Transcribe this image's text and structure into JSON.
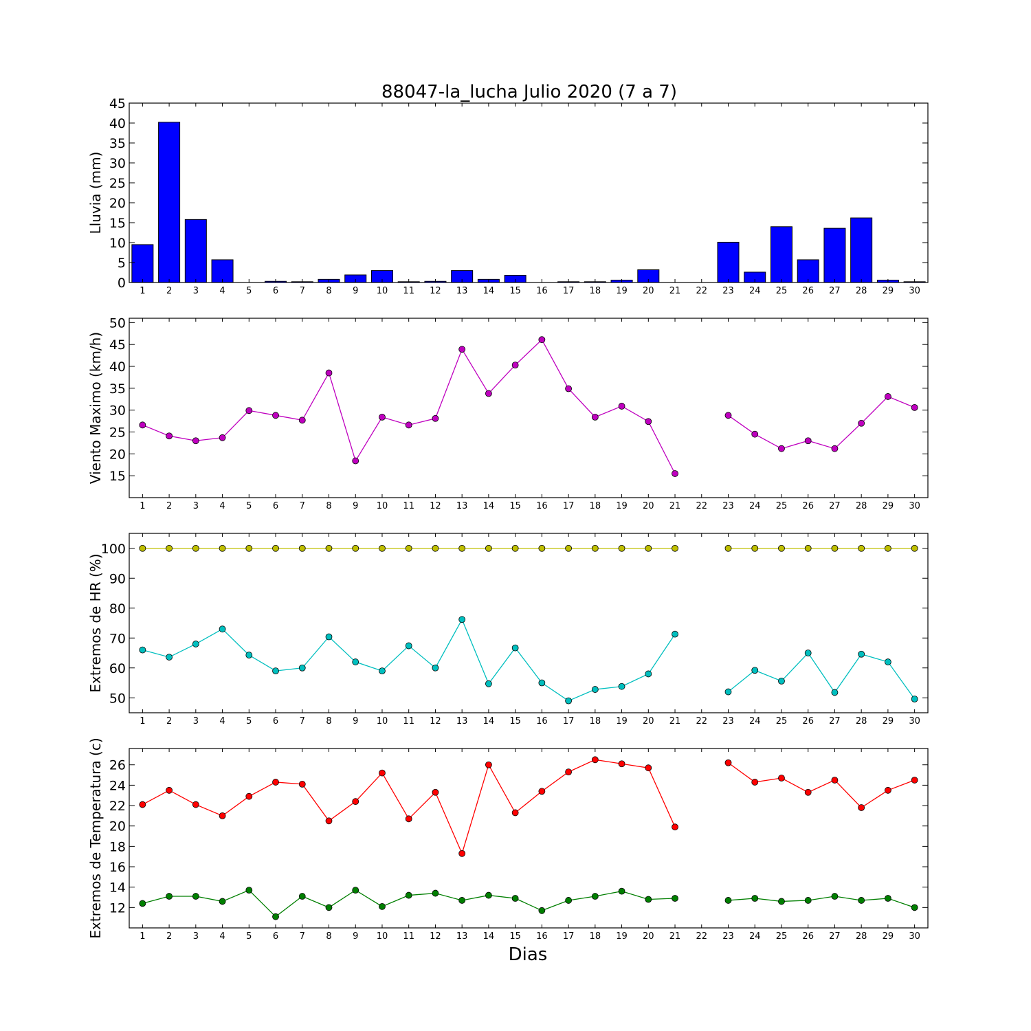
{
  "title": "88047-la_lucha Julio 2020  (7 a 7)",
  "xlabel": "Dias",
  "chart_data": [
    {
      "type": "bar",
      "ylabel": "Lluvia (mm)",
      "ylim": [
        0,
        45
      ],
      "yticks": [
        0,
        5,
        10,
        15,
        20,
        25,
        30,
        35,
        40,
        45
      ],
      "categories": [
        1,
        2,
        3,
        4,
        5,
        6,
        7,
        8,
        9,
        10,
        11,
        12,
        13,
        14,
        15,
        16,
        17,
        18,
        19,
        20,
        21,
        22,
        23,
        24,
        25,
        26,
        27,
        28,
        29,
        30
      ],
      "series": [
        {
          "color": "#0000ff",
          "values": [
            9.5,
            40.2,
            15.8,
            5.7,
            0,
            0.3,
            0.2,
            0.8,
            1.9,
            3.0,
            0.2,
            0.3,
            3.0,
            0.8,
            1.8,
            0,
            0.2,
            0.2,
            0.6,
            3.2,
            0,
            null,
            10.1,
            2.6,
            14.0,
            5.7,
            13.6,
            16.2,
            0.6,
            0.2
          ]
        }
      ],
      "grid": false
    },
    {
      "type": "line",
      "ylabel": "Viento Maximo (km/h)",
      "ylim": [
        10,
        51
      ],
      "yticks": [
        15,
        20,
        25,
        30,
        35,
        40,
        45,
        50
      ],
      "x": [
        1,
        2,
        3,
        4,
        5,
        6,
        7,
        8,
        9,
        10,
        11,
        12,
        13,
        14,
        15,
        16,
        17,
        18,
        19,
        20,
        21,
        22,
        23,
        24,
        25,
        26,
        27,
        28,
        29,
        30
      ],
      "series": [
        {
          "color": "#bf00bf",
          "values": [
            26.6,
            24.1,
            23.0,
            23.7,
            29.9,
            28.8,
            27.7,
            38.5,
            18.4,
            28.4,
            26.6,
            28.1,
            43.9,
            33.8,
            40.3,
            46.1,
            34.9,
            28.4,
            30.9,
            27.4,
            15.5,
            null,
            28.8,
            24.5,
            21.2,
            23.0,
            21.2,
            27.0,
            33.1,
            30.6
          ]
        }
      ],
      "grid": false
    },
    {
      "type": "line",
      "ylabel": "Extremos de HR (%)",
      "ylim": [
        45,
        105
      ],
      "yticks": [
        50,
        60,
        70,
        80,
        90,
        100
      ],
      "x": [
        1,
        2,
        3,
        4,
        5,
        6,
        7,
        8,
        9,
        10,
        11,
        12,
        13,
        14,
        15,
        16,
        17,
        18,
        19,
        20,
        21,
        22,
        23,
        24,
        25,
        26,
        27,
        28,
        29,
        30
      ],
      "series": [
        {
          "color": "#bfbf00",
          "values": [
            100,
            100,
            100,
            100,
            100,
            100,
            100,
            100,
            100,
            100,
            100,
            100,
            100,
            100,
            100,
            100,
            100,
            100,
            100,
            100,
            100,
            null,
            100,
            100,
            100,
            100,
            100,
            100,
            100,
            100
          ]
        },
        {
          "color": "#00bfbf",
          "values": [
            66,
            63.6,
            68,
            73,
            64.3,
            59,
            60,
            70.4,
            62,
            59,
            67.4,
            60,
            76.2,
            54.7,
            66.7,
            55,
            49,
            52.8,
            53.8,
            58,
            71.3,
            null,
            52,
            59.2,
            55.6,
            65,
            51.8,
            64.6,
            62,
            49.6
          ]
        }
      ],
      "grid": false
    },
    {
      "type": "line",
      "ylabel": "Extremos de Temperatura (c)",
      "ylim": [
        10,
        27.6
      ],
      "yticks": [
        12,
        14,
        16,
        18,
        20,
        22,
        24,
        26
      ],
      "x": [
        1,
        2,
        3,
        4,
        5,
        6,
        7,
        8,
        9,
        10,
        11,
        12,
        13,
        14,
        15,
        16,
        17,
        18,
        19,
        20,
        21,
        22,
        23,
        24,
        25,
        26,
        27,
        28,
        29,
        30
      ],
      "series": [
        {
          "color": "#ff0000",
          "values": [
            22.1,
            23.5,
            22.1,
            21.0,
            22.9,
            24.3,
            24.1,
            20.5,
            22.4,
            25.2,
            20.7,
            23.3,
            17.3,
            26.0,
            21.3,
            23.4,
            25.3,
            26.5,
            26.1,
            25.7,
            19.9,
            null,
            26.2,
            24.3,
            24.7,
            23.3,
            24.5,
            21.8,
            23.5,
            24.5
          ]
        },
        {
          "color": "#007f00",
          "values": [
            12.4,
            13.1,
            13.1,
            12.6,
            13.7,
            11.1,
            13.1,
            12.0,
            13.7,
            12.1,
            13.2,
            13.4,
            12.7,
            13.2,
            12.9,
            11.7,
            12.7,
            13.1,
            13.6,
            12.8,
            12.9,
            null,
            12.7,
            12.9,
            12.6,
            12.7,
            13.1,
            12.7,
            12.9,
            12.0
          ]
        }
      ],
      "grid": false
    }
  ]
}
